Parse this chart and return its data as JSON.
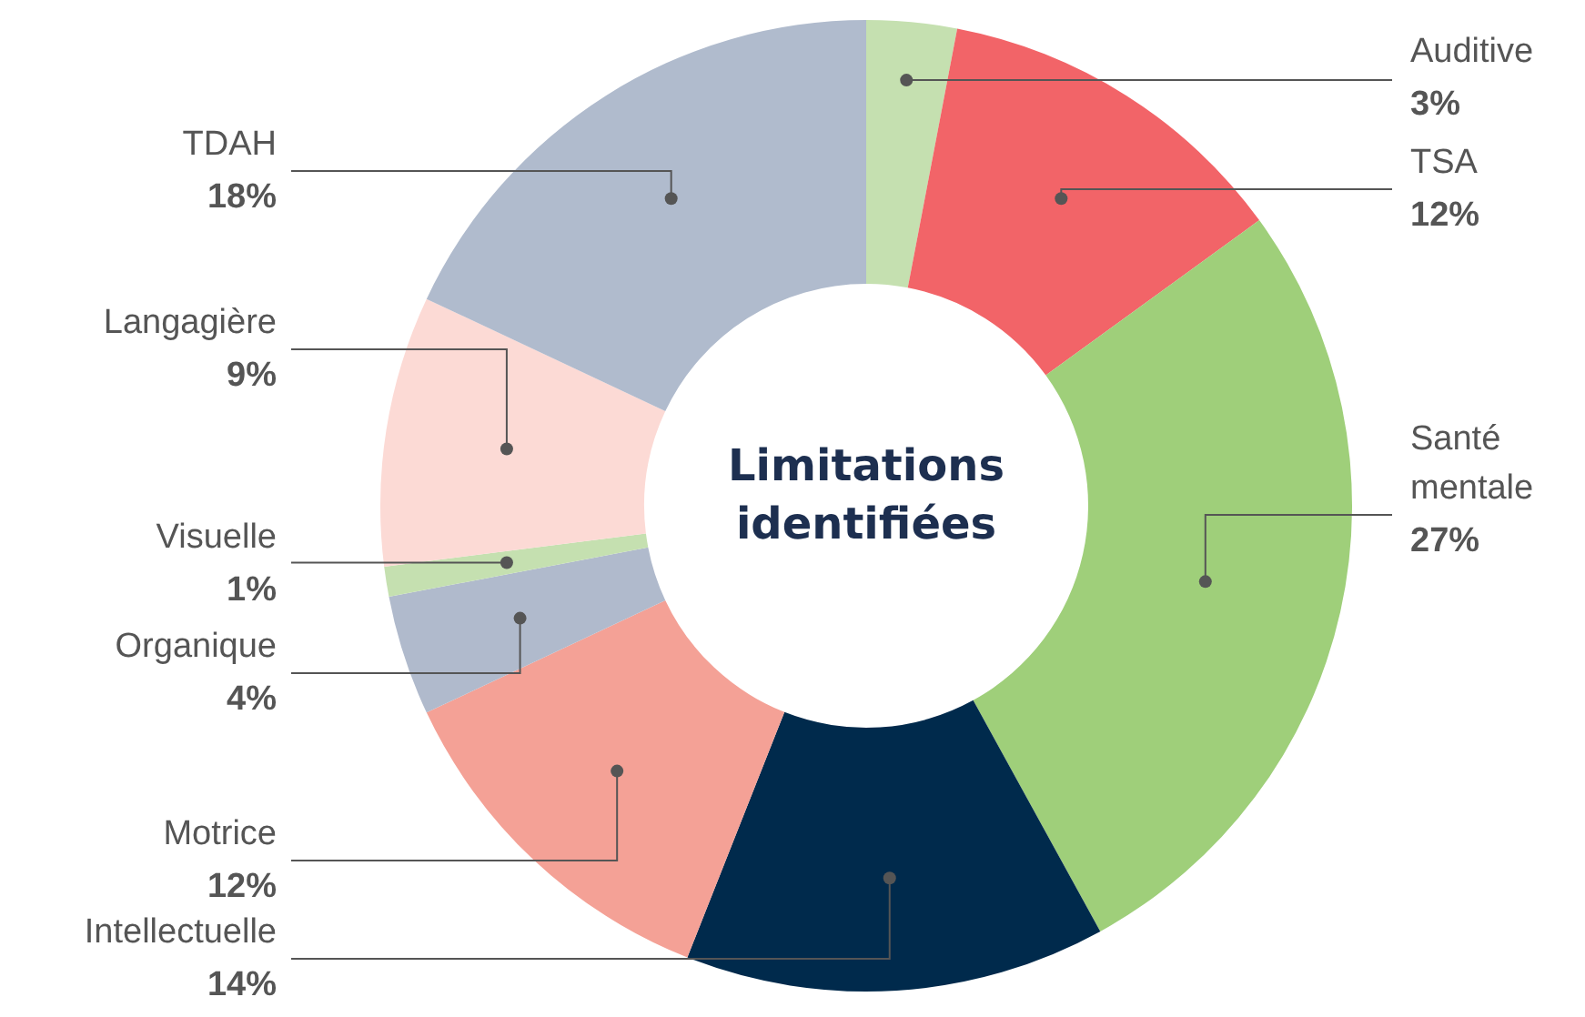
{
  "chart_data": {
    "type": "donut",
    "title": "Limitations identifiées",
    "categories": [
      "Auditive",
      "TSA",
      "Santé mentale",
      "Intellectuelle",
      "Motrice",
      "Organique",
      "Visuelle",
      "Langagière",
      "TDAH"
    ],
    "values": [
      3,
      12,
      27,
      14,
      12,
      4,
      1,
      9,
      18
    ],
    "value_labels": [
      "3%",
      "12%",
      "27%",
      "14%",
      "12%",
      "4%",
      "1%",
      "9%",
      "18%"
    ],
    "colors": [
      "#c5e0b0",
      "#f26468",
      "#9fcf7a",
      "#002a4c",
      "#f4a196",
      "#b0bacc",
      "#c5e0b0",
      "#fcdad5",
      "#b0bbcd"
    ]
  }
}
